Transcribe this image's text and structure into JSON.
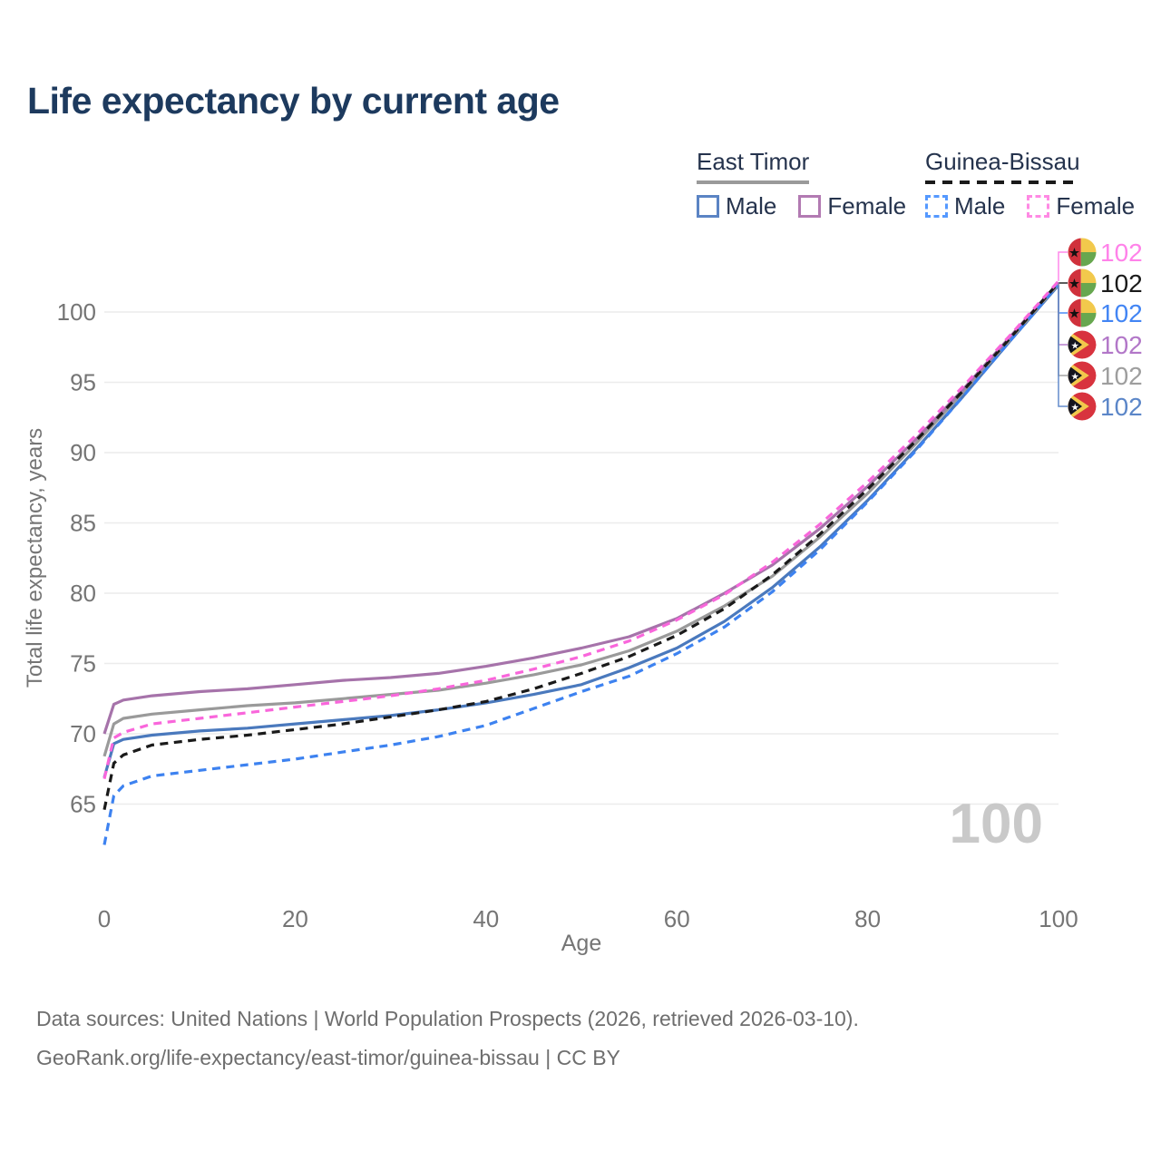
{
  "title": "Life expectancy by current age",
  "legend": {
    "groups": [
      {
        "name": "East Timor",
        "line_style": "solid",
        "underline_color": "#9a9a9a",
        "items": [
          {
            "label": "Male",
            "color": "#5b84c4",
            "dashed": false
          },
          {
            "label": "Female",
            "color": "#b27ab2",
            "dashed": false
          }
        ]
      },
      {
        "name": "Guinea-Bissau",
        "line_style": "dashed",
        "underline_color": "#1a1a1a",
        "items": [
          {
            "label": "Male",
            "color": "#5599ff",
            "dashed": true
          },
          {
            "label": "Female",
            "color": "#ff8ae4",
            "dashed": true
          }
        ]
      }
    ]
  },
  "watermark": "100",
  "footer": {
    "line1": "Data sources: United Nations | World Population Prospects (2026, retrieved 2026-03-10).",
    "line2": "GeoRank.org/life-expectancy/east-timor/guinea-bissau | CC BY"
  },
  "chart_data": {
    "type": "line",
    "title": "Life expectancy by current age",
    "xlabel": "Age",
    "ylabel": "Total life expectancy, years",
    "xlim": [
      0,
      100
    ],
    "ylim": [
      61,
      103
    ],
    "x_ticks": [
      0,
      20,
      40,
      60,
      80,
      100
    ],
    "y_ticks": [
      65,
      70,
      75,
      80,
      85,
      90,
      95,
      100
    ],
    "grid": "horizontal",
    "legend_position": "top-right",
    "axis_color": "#757575",
    "gridline_color": "#ececec",
    "x": [
      0,
      1,
      2,
      5,
      10,
      15,
      20,
      25,
      30,
      35,
      40,
      45,
      50,
      55,
      60,
      65,
      70,
      75,
      80,
      85,
      90,
      95,
      100
    ],
    "end_label_rows": [
      278,
      312,
      345,
      380,
      414,
      448
    ],
    "series": [
      {
        "name": "Guinea-Bissau Female",
        "flag": "guinea-bissau",
        "sex": "Female",
        "color": "#f966db",
        "dashed": true,
        "end_label": "102",
        "end_label_color": "#ff82e9",
        "values": [
          66.8,
          69.7,
          70.1,
          70.7,
          71.1,
          71.5,
          71.9,
          72.3,
          72.7,
          73.2,
          73.8,
          74.6,
          75.5,
          76.6,
          78.1,
          79.9,
          82.2,
          84.9,
          87.9,
          91.2,
          94.7,
          98.4,
          102.2
        ]
      },
      {
        "name": "Guinea-Bissau Total",
        "flag": "guinea-bissau",
        "sex": "Total",
        "color": "#1a1a1a",
        "dashed": true,
        "end_label": "102",
        "end_label_color": "#1a1a1a",
        "values": [
          64.6,
          67.9,
          68.5,
          69.2,
          69.6,
          69.9,
          70.3,
          70.7,
          71.2,
          71.7,
          72.3,
          73.2,
          74.3,
          75.5,
          77.0,
          78.9,
          81.3,
          84.2,
          87.4,
          90.8,
          94.4,
          98.2,
          102.1
        ]
      },
      {
        "name": "Guinea-Bissau Male",
        "flag": "guinea-bissau",
        "sex": "Male",
        "color": "#3d82f0",
        "dashed": true,
        "end_label": "102",
        "end_label_color": "#4285f4",
        "values": [
          62.1,
          65.6,
          66.3,
          67.0,
          67.4,
          67.8,
          68.2,
          68.7,
          69.2,
          69.8,
          70.6,
          71.8,
          73.0,
          74.1,
          75.7,
          77.6,
          80.1,
          83.1,
          86.5,
          90.1,
          94.0,
          98.0,
          102.0
        ]
      },
      {
        "name": "East Timor Female",
        "flag": "east-timor",
        "sex": "Female",
        "color": "#a673aa",
        "dashed": false,
        "end_label": "102",
        "end_label_color": "#b277c8",
        "values": [
          70.0,
          72.1,
          72.4,
          72.7,
          73.0,
          73.2,
          73.5,
          73.8,
          74.0,
          74.3,
          74.8,
          75.4,
          76.1,
          76.9,
          78.2,
          80.0,
          82.0,
          84.6,
          87.6,
          90.9,
          94.5,
          98.3,
          102.1
        ]
      },
      {
        "name": "East Timor Total",
        "flag": "east-timor",
        "sex": "Total",
        "color": "#9a9a9a",
        "dashed": false,
        "end_label": "102",
        "end_label_color": "#9e9e9e",
        "values": [
          68.4,
          70.7,
          71.1,
          71.4,
          71.7,
          72.0,
          72.2,
          72.5,
          72.8,
          73.1,
          73.6,
          74.2,
          74.9,
          75.9,
          77.3,
          79.1,
          81.2,
          84.0,
          87.1,
          90.6,
          94.3,
          98.1,
          102.0
        ]
      },
      {
        "name": "East Timor Male",
        "flag": "east-timor",
        "sex": "Male",
        "color": "#4a79bd",
        "dashed": false,
        "end_label": "102",
        "end_label_color": "#5b86c8",
        "values": [
          66.9,
          69.3,
          69.6,
          69.9,
          70.2,
          70.4,
          70.7,
          71.0,
          71.3,
          71.7,
          72.2,
          72.8,
          73.5,
          74.7,
          76.1,
          78.0,
          80.4,
          83.3,
          86.6,
          90.2,
          94.0,
          98.0,
          101.9
        ]
      }
    ]
  }
}
